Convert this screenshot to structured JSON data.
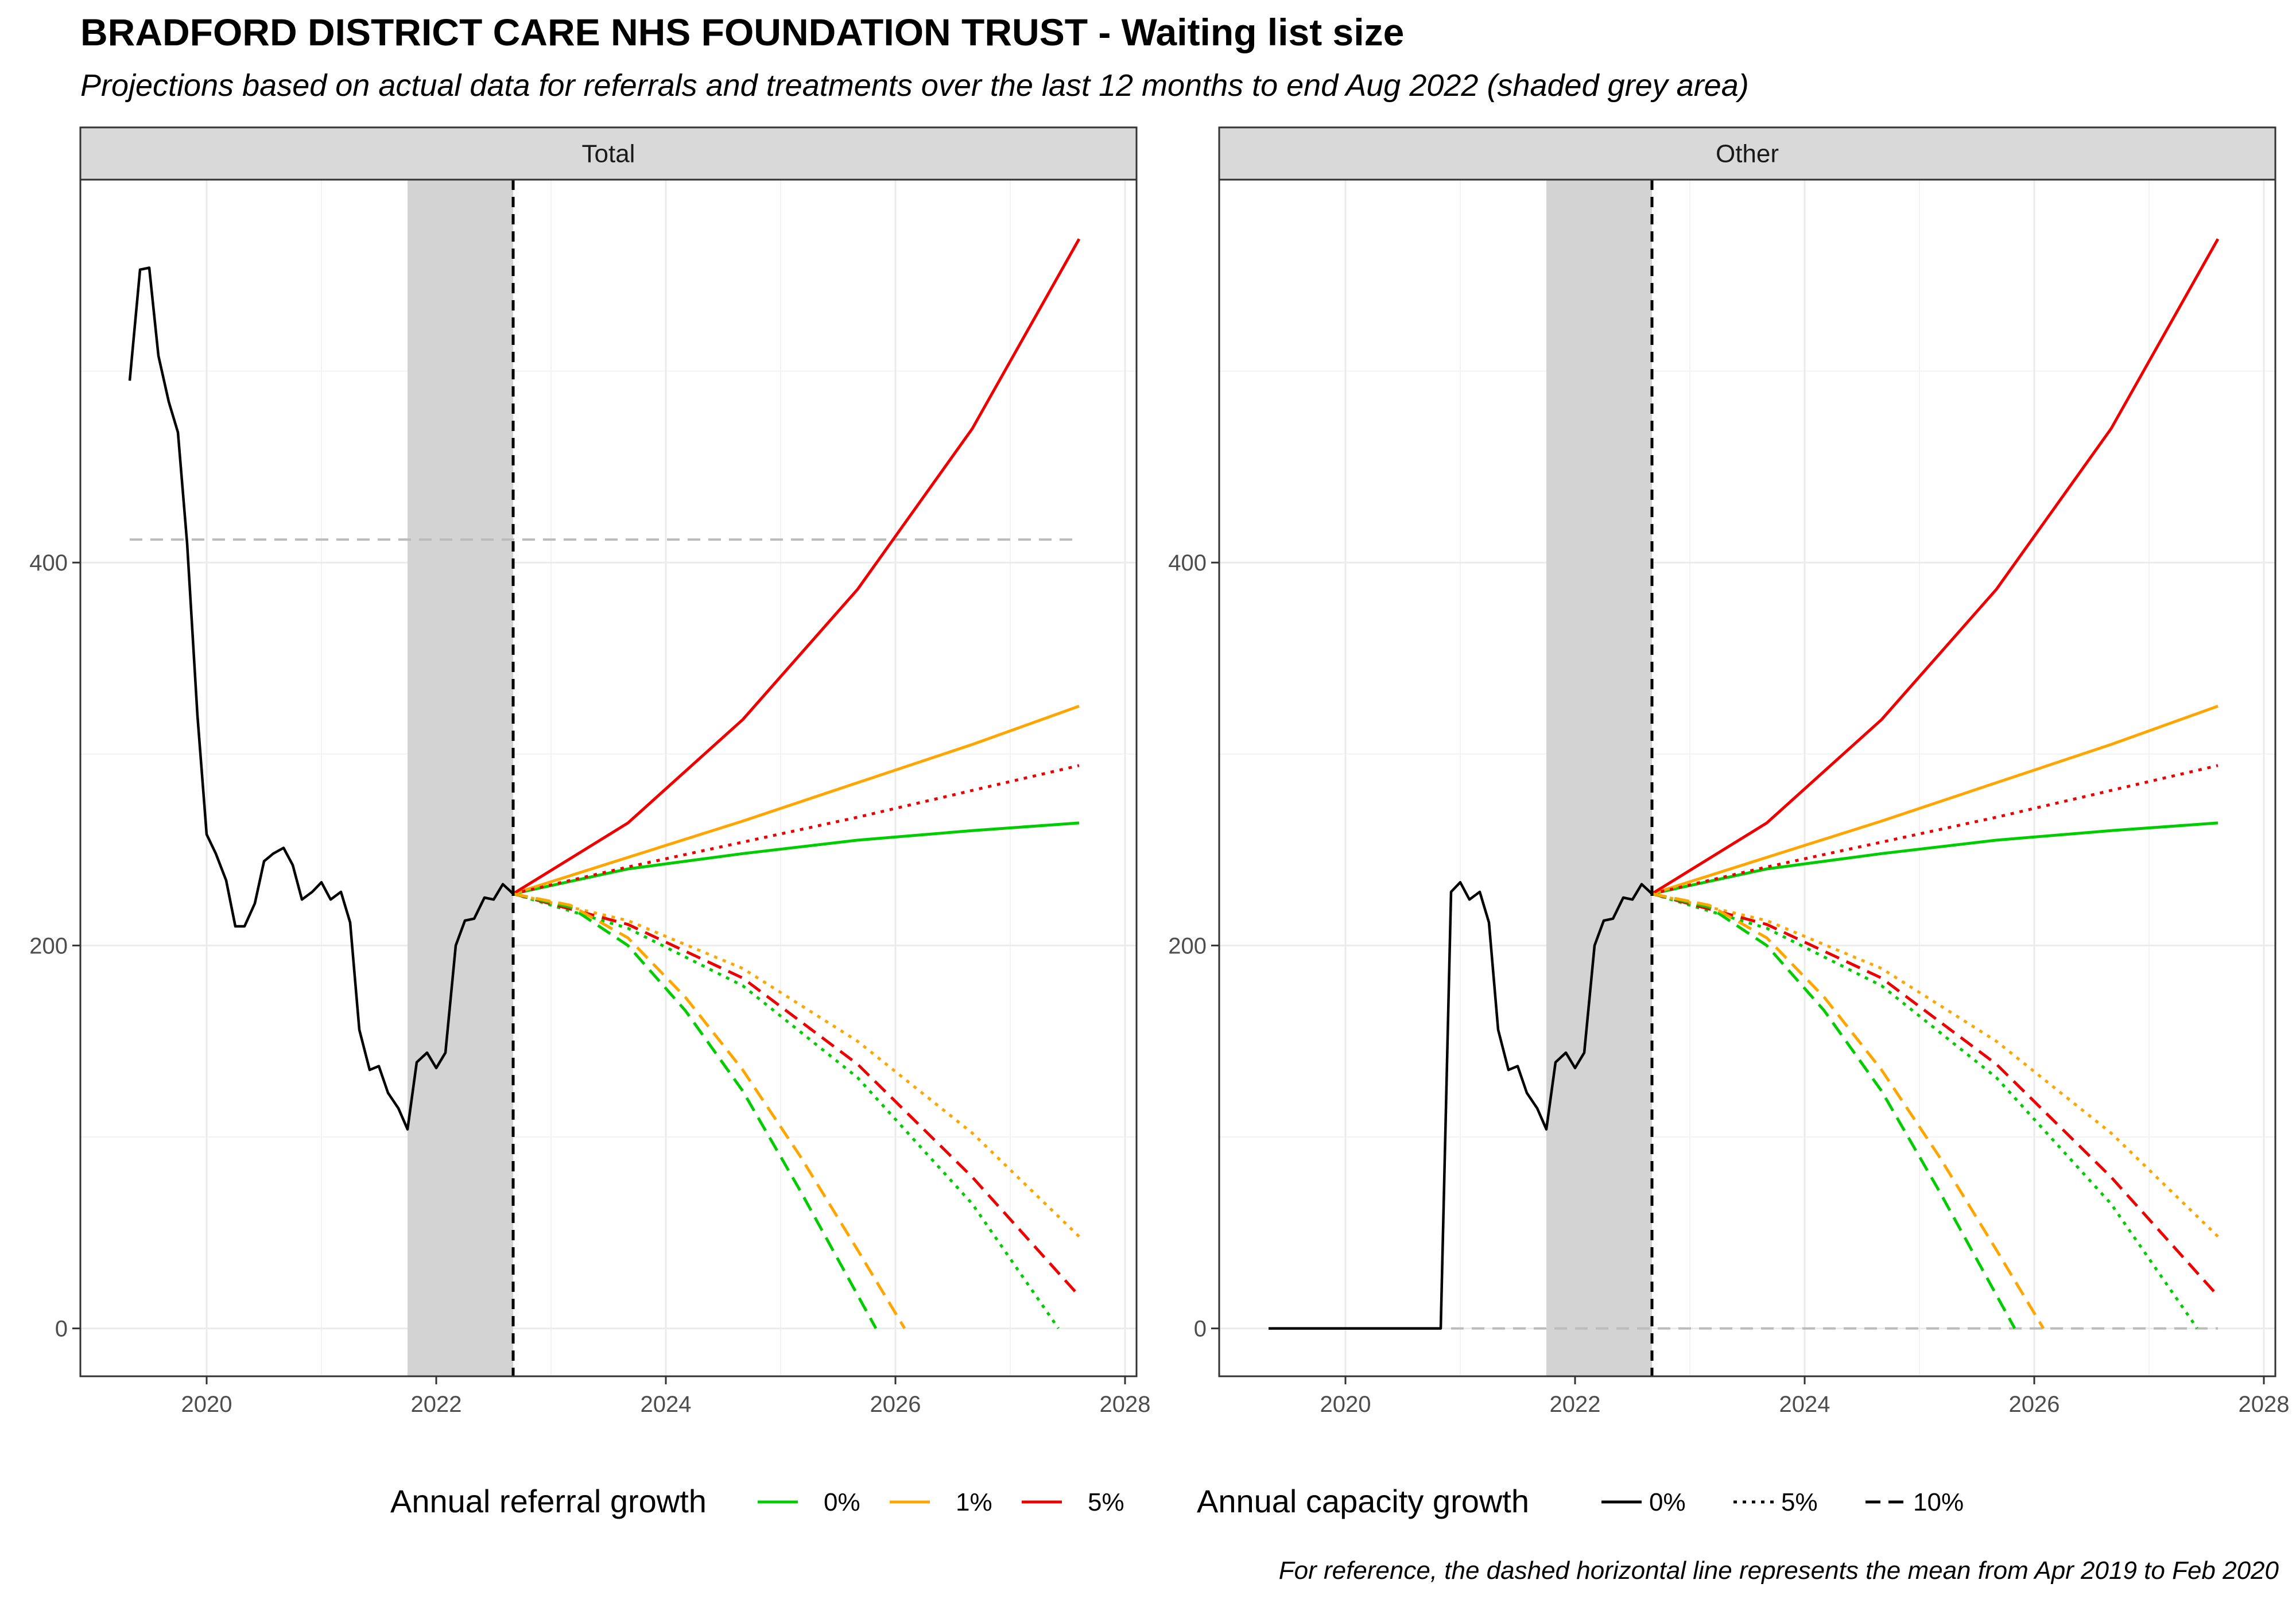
{
  "page": {
    "title": "BRADFORD DISTRICT CARE NHS FOUNDATION TRUST - Waiting list size",
    "subtitle": "Projections based on actual data for referrals and treatments over the last 12 months to end Aug 2022 (shaded grey area)",
    "caption": "For reference, the dashed horizontal line represents the mean from Apr 2019 to Feb 2020"
  },
  "colors": {
    "referral_0": "#00CC00",
    "referral_1": "#FFA500",
    "referral_5": "#EE0000",
    "actual": "#000000",
    "shade": "#D3D3D3",
    "reference": "#BBBBBB"
  },
  "legend": {
    "referral_title": "Annual referral growth",
    "referral_items": [
      {
        "label": "0%",
        "color": "#00CC00"
      },
      {
        "label": "1%",
        "color": "#FFA500"
      },
      {
        "label": "5%",
        "color": "#EE0000"
      }
    ],
    "capacity_title": "Annual capacity growth",
    "capacity_items": [
      {
        "label": "0%",
        "dash": "solid"
      },
      {
        "label": "5%",
        "dash": "dotted"
      },
      {
        "label": "10%",
        "dash": "dashed"
      }
    ]
  },
  "chart_data": [
    {
      "type": "line",
      "panel": "Total",
      "xlim": [
        2018.9,
        2028.1
      ],
      "ylim": [
        -25,
        600
      ],
      "x_ticks": [
        2020,
        2022,
        2024,
        2026,
        2028
      ],
      "x_tick_labels": [
        "2020",
        "2022",
        "2024",
        "2026",
        "2028"
      ],
      "y_ticks": [
        0,
        200,
        400
      ],
      "y_tick_labels": [
        "0",
        "200",
        "400"
      ],
      "grid": true,
      "shaded_region": [
        2021.75,
        2022.67
      ],
      "vline": 2022.67,
      "reference_line": {
        "y": 412,
        "x": [
          2019.33,
          2027.6
        ]
      },
      "actual": {
        "x": [
          2019.33,
          2019.42,
          2019.5,
          2019.58,
          2019.67,
          2019.75,
          2019.83,
          2019.92,
          2020.0,
          2020.08,
          2020.17,
          2020.25,
          2020.33,
          2020.42,
          2020.5,
          2020.58,
          2020.67,
          2020.75,
          2020.83,
          2020.92,
          2021.0,
          2021.08,
          2021.17,
          2021.25,
          2021.33,
          2021.42,
          2021.5,
          2021.58,
          2021.67,
          2021.75,
          2021.83,
          2021.92,
          2022.0,
          2022.08,
          2022.17,
          2022.25,
          2022.33,
          2022.42,
          2022.5,
          2022.58,
          2022.67
        ],
        "y": [
          495,
          553,
          554,
          508,
          484,
          468,
          410,
          320,
          258,
          248,
          234,
          210,
          210,
          222,
          244,
          248,
          251,
          242,
          224,
          228,
          233,
          224,
          228,
          212,
          156,
          135,
          137,
          123,
          115,
          104,
          139,
          144,
          136,
          144,
          200,
          213,
          214,
          225,
          224,
          232,
          227
        ]
      },
      "projections": [
        {
          "referral_growth": "0%",
          "capacity_growth": "0%",
          "x": [
            2022.67,
            2023.67,
            2024.67,
            2025.67,
            2026.67,
            2027.6
          ],
          "y": [
            227,
            240,
            248,
            255,
            260,
            264
          ]
        },
        {
          "referral_growth": "1%",
          "capacity_growth": "0%",
          "x": [
            2022.67,
            2023.67,
            2024.67,
            2025.67,
            2026.67,
            2027.6
          ],
          "y": [
            227,
            246,
            265,
            285,
            305,
            325
          ]
        },
        {
          "referral_growth": "5%",
          "capacity_growth": "0%",
          "x": [
            2022.67,
            2023.67,
            2024.67,
            2025.67,
            2026.67,
            2027.6
          ],
          "y": [
            227,
            264,
            318,
            386,
            470,
            569
          ]
        },
        {
          "referral_growth": "5%",
          "capacity_growth": "5%",
          "x": [
            2022.67,
            2023.67,
            2024.67,
            2025.67,
            2026.67,
            2027.6
          ],
          "y": [
            227,
            241,
            254,
            267,
            281,
            294
          ]
        },
        {
          "referral_growth": "0%",
          "capacity_growth": "5%",
          "x": [
            2022.67,
            2023.67,
            2024.67,
            2025.67,
            2026.67,
            2027.42
          ],
          "y": [
            227,
            209,
            179,
            131,
            65,
            0
          ]
        },
        {
          "referral_growth": "1%",
          "capacity_growth": "5%",
          "x": [
            2022.67,
            2023.67,
            2024.67,
            2025.67,
            2026.67,
            2027.6
          ],
          "y": [
            227,
            213,
            188,
            150,
            102,
            48
          ]
        },
        {
          "referral_growth": "5%",
          "capacity_growth": "10%",
          "x": [
            2022.67,
            2023.67,
            2024.67,
            2025.67,
            2026.67,
            2027.6
          ],
          "y": [
            227,
            211,
            183,
            138,
            79,
            17
          ]
        },
        {
          "referral_growth": "0%",
          "capacity_growth": "10%",
          "x": [
            2022.67,
            2023.17,
            2023.67,
            2024.17,
            2024.67,
            2025.17,
            2025.83
          ],
          "y": [
            227,
            220,
            200,
            166,
            124,
            72,
            0
          ]
        },
        {
          "referral_growth": "1%",
          "capacity_growth": "10%",
          "x": [
            2022.67,
            2023.17,
            2023.67,
            2024.17,
            2024.67,
            2025.17,
            2025.67,
            2026.08
          ],
          "y": [
            227,
            221,
            204,
            173,
            135,
            90,
            41,
            0
          ]
        }
      ]
    },
    {
      "type": "line",
      "panel": "Other",
      "xlim": [
        2018.9,
        2028.1
      ],
      "ylim": [
        -25,
        600
      ],
      "x_ticks": [
        2020,
        2022,
        2024,
        2026,
        2028
      ],
      "x_tick_labels": [
        "2020",
        "2022",
        "2024",
        "2026",
        "2028"
      ],
      "y_ticks": [
        0,
        200,
        400
      ],
      "y_tick_labels": [
        "0",
        "200",
        "400"
      ],
      "grid": true,
      "shaded_region": [
        2021.75,
        2022.67
      ],
      "vline": 2022.67,
      "reference_line": {
        "y": 0,
        "x": [
          2020.92,
          2027.6
        ]
      },
      "actual": {
        "x": [
          2019.33,
          2020.83,
          2020.92,
          2021.0,
          2021.08,
          2021.17,
          2021.25,
          2021.33,
          2021.42,
          2021.5,
          2021.58,
          2021.67,
          2021.75,
          2021.83,
          2021.92,
          2022.0,
          2022.08,
          2022.17,
          2022.25,
          2022.33,
          2022.42,
          2022.5,
          2022.58,
          2022.67
        ],
        "y": [
          0,
          0,
          228,
          233,
          224,
          228,
          212,
          156,
          135,
          137,
          123,
          115,
          104,
          139,
          144,
          136,
          144,
          200,
          213,
          214,
          225,
          224,
          232,
          227
        ]
      },
      "projections": [
        {
          "referral_growth": "0%",
          "capacity_growth": "0%",
          "x": [
            2022.67,
            2023.67,
            2024.67,
            2025.67,
            2026.67,
            2027.6
          ],
          "y": [
            227,
            240,
            248,
            255,
            260,
            264
          ]
        },
        {
          "referral_growth": "1%",
          "capacity_growth": "0%",
          "x": [
            2022.67,
            2023.67,
            2024.67,
            2025.67,
            2026.67,
            2027.6
          ],
          "y": [
            227,
            246,
            265,
            285,
            305,
            325
          ]
        },
        {
          "referral_growth": "5%",
          "capacity_growth": "0%",
          "x": [
            2022.67,
            2023.67,
            2024.67,
            2025.67,
            2026.67,
            2027.6
          ],
          "y": [
            227,
            264,
            318,
            386,
            470,
            569
          ]
        },
        {
          "referral_growth": "5%",
          "capacity_growth": "5%",
          "x": [
            2022.67,
            2023.67,
            2024.67,
            2025.67,
            2026.67,
            2027.6
          ],
          "y": [
            227,
            241,
            254,
            267,
            281,
            294
          ]
        },
        {
          "referral_growth": "0%",
          "capacity_growth": "5%",
          "x": [
            2022.67,
            2023.67,
            2024.67,
            2025.67,
            2026.67,
            2027.42
          ],
          "y": [
            227,
            209,
            179,
            131,
            65,
            0
          ]
        },
        {
          "referral_growth": "1%",
          "capacity_growth": "5%",
          "x": [
            2022.67,
            2023.67,
            2024.67,
            2025.67,
            2026.67,
            2027.6
          ],
          "y": [
            227,
            213,
            188,
            150,
            102,
            48
          ]
        },
        {
          "referral_growth": "5%",
          "capacity_growth": "10%",
          "x": [
            2022.67,
            2023.67,
            2024.67,
            2025.67,
            2026.67,
            2027.6
          ],
          "y": [
            227,
            211,
            183,
            138,
            79,
            17
          ]
        },
        {
          "referral_growth": "0%",
          "capacity_growth": "10%",
          "x": [
            2022.67,
            2023.17,
            2023.67,
            2024.17,
            2024.67,
            2025.17,
            2025.83
          ],
          "y": [
            227,
            220,
            200,
            166,
            124,
            72,
            0
          ]
        },
        {
          "referral_growth": "1%",
          "capacity_growth": "10%",
          "x": [
            2022.67,
            2023.17,
            2023.67,
            2024.17,
            2024.67,
            2025.17,
            2025.67,
            2026.08
          ],
          "y": [
            227,
            221,
            204,
            173,
            135,
            90,
            41,
            0
          ]
        }
      ]
    }
  ]
}
